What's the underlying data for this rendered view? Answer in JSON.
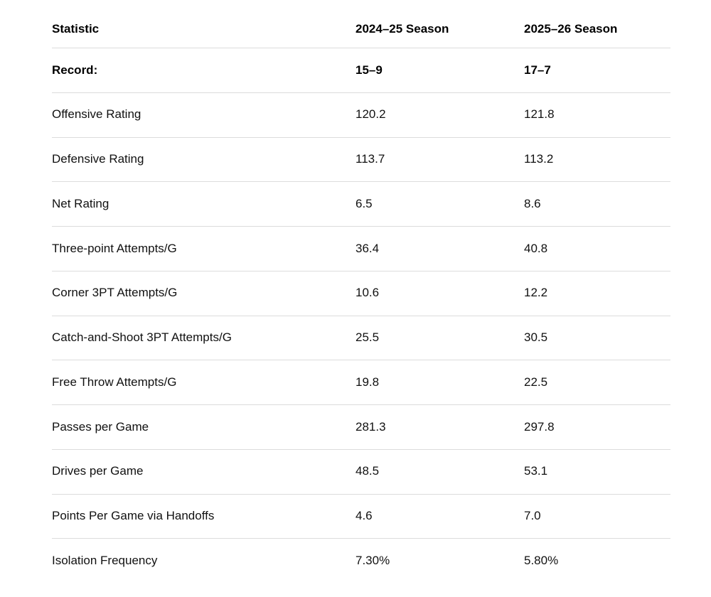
{
  "chart_data": {
    "type": "table",
    "title": "",
    "columns": [
      "Statistic",
      "2024–25 Season",
      "2025–26 Season"
    ],
    "rows": [
      {
        "label": "Record:",
        "season_2024_25": "15–9",
        "season_2025_26": "17–7"
      },
      {
        "label": "Offensive Rating",
        "season_2024_25": "120.2",
        "season_2025_26": "121.8"
      },
      {
        "label": "Defensive Rating",
        "season_2024_25": "113.7",
        "season_2025_26": "113.2"
      },
      {
        "label": "Net Rating",
        "season_2024_25": "6.5",
        "season_2025_26": "8.6"
      },
      {
        "label": "Three-point Attempts/G",
        "season_2024_25": "36.4",
        "season_2025_26": "40.8"
      },
      {
        "label": "Corner 3PT Attempts/G",
        "season_2024_25": "10.6",
        "season_2025_26": "12.2"
      },
      {
        "label": "Catch-and-Shoot 3PT Attempts/G",
        "season_2024_25": "25.5",
        "season_2025_26": "30.5"
      },
      {
        "label": "Free Throw Attempts/G",
        "season_2024_25": "19.8",
        "season_2025_26": "22.5"
      },
      {
        "label": "Passes per Game",
        "season_2024_25": "281.3",
        "season_2025_26": "297.8"
      },
      {
        "label": "Drives per Game",
        "season_2024_25": "48.5",
        "season_2025_26": "53.1"
      },
      {
        "label": "Points Per Game via Handoffs",
        "season_2024_25": "4.6",
        "season_2025_26": "7.0"
      },
      {
        "label": "Isolation Frequency",
        "season_2024_25": "7.30%",
        "season_2025_26": "5.80%"
      }
    ],
    "colors": {
      "background": "#ffffff",
      "divider": "#dcdcdc",
      "text": "#111111",
      "header_text": "#000000"
    }
  }
}
